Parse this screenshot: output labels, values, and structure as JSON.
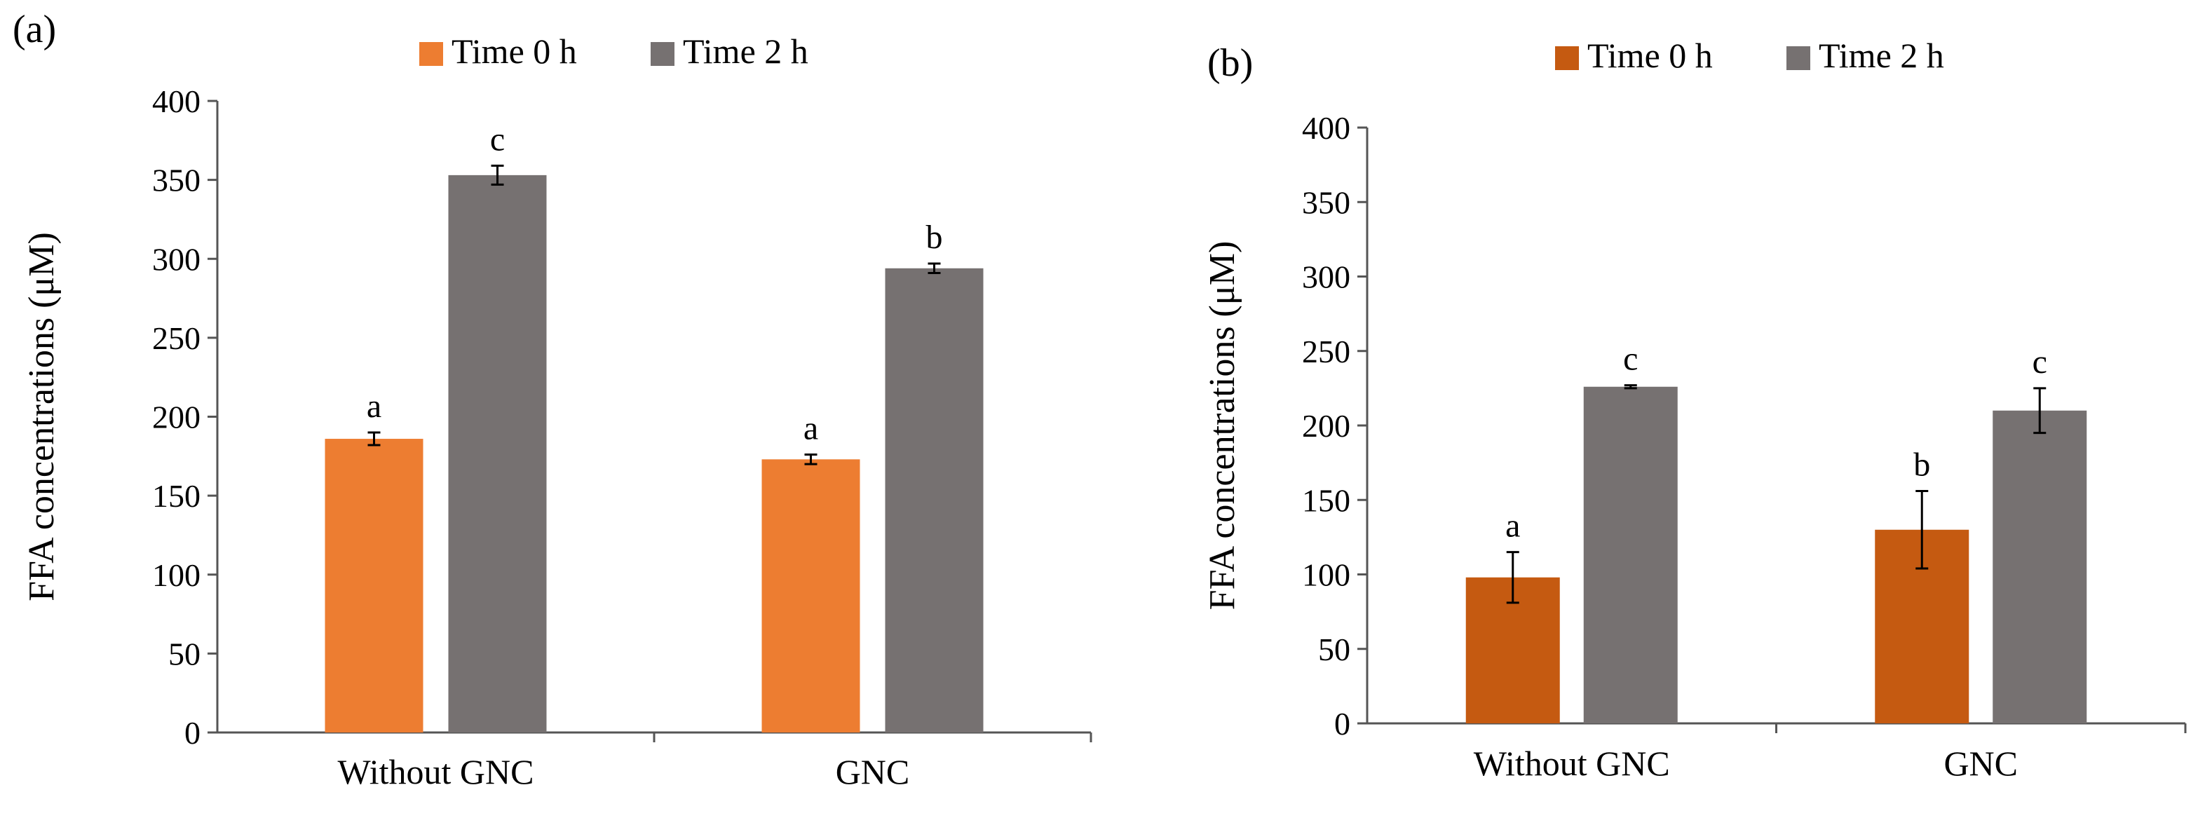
{
  "chart_data": [
    {
      "type": "bar",
      "panel_label": "(a)",
      "categories": [
        "Without GNC",
        "GNC"
      ],
      "series": [
        {
          "name": "Time 0 h",
          "color": "#ED7D31",
          "values": [
            186,
            173
          ],
          "errors": [
            4,
            3
          ],
          "letters": [
            "a",
            "a"
          ]
        },
        {
          "name": "Time 2 h",
          "color": "#767171",
          "values": [
            353,
            294
          ],
          "errors": [
            6,
            3
          ],
          "letters": [
            "c",
            "b"
          ]
        }
      ],
      "ylabel": "FFA concentrations (μM)",
      "xlabel": "",
      "ylim": [
        0,
        400
      ],
      "yticks": [
        0,
        50,
        100,
        150,
        200,
        250,
        300,
        350,
        400
      ],
      "legend_position": "top",
      "grid": false
    },
    {
      "type": "bar",
      "panel_label": "(b)",
      "categories": [
        "Without GNC",
        "GNC"
      ],
      "series": [
        {
          "name": "Time 0 h",
          "color": "#C55A11",
          "values": [
            98,
            130
          ],
          "errors": [
            17,
            26
          ],
          "letters": [
            "a",
            "b"
          ]
        },
        {
          "name": "Time 2 h",
          "color": "#767171",
          "values": [
            226,
            210
          ],
          "errors": [
            1,
            15
          ],
          "letters": [
            "c",
            "c"
          ]
        }
      ],
      "ylabel": "FFA concentrations (μM)",
      "xlabel": "",
      "ylim": [
        0,
        400
      ],
      "yticks": [
        0,
        50,
        100,
        150,
        200,
        250,
        300,
        350,
        400
      ],
      "legend_position": "top",
      "grid": false
    }
  ]
}
